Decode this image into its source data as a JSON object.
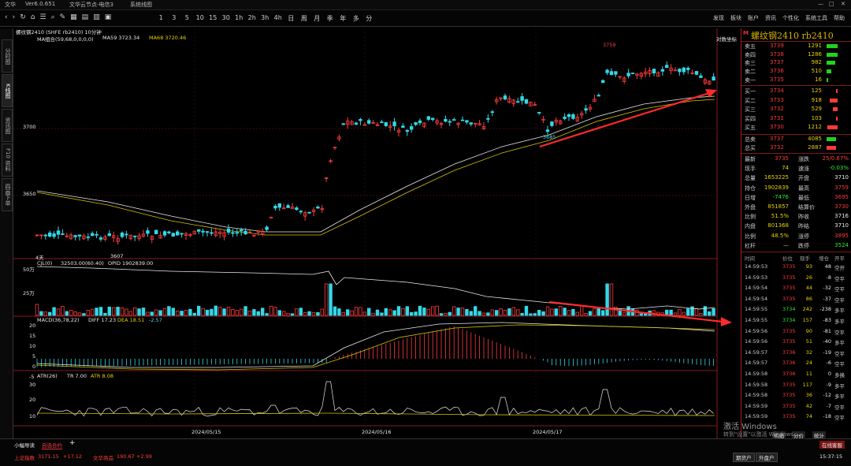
{
  "app": {
    "title_items": [
      "Ver6.0.651",
      "文华云节点-电信3",
      "系统线图"
    ],
    "menu": [
      "发现",
      "板块",
      "账户",
      "资讯",
      "个性化",
      "系统工具",
      "帮助"
    ],
    "periods": [
      "1",
      "3",
      "5",
      "10",
      "15",
      "30",
      "1h",
      "2h",
      "3h",
      "4h",
      "日",
      "周",
      "月",
      "季",
      "年",
      "多",
      "分"
    ]
  },
  "left_tabs": [
    "分时图",
    "K线图",
    "资讯图",
    "F10 资料",
    "四画下单"
  ],
  "chart": {
    "symbol_label": "螺纹钢2410 (SHFE rb2410) 10分钟",
    "ma_header": {
      "name": "MA组合(59,68,0,0,0,0)",
      "ma59": "MA59 3723.34",
      "ma68": "MA68 3720.46"
    },
    "right_label": "对数坐标",
    "price_ticks": [
      "3700",
      "3650"
    ],
    "annotations": {
      "high": "3759",
      "low1": "3607",
      "low2": "3685",
      "period_mark": "4天"
    },
    "vol_header": {
      "name": "CJL(0)",
      "vol": "32503.00(60:40)",
      "opid": "OPID 1902839.00"
    },
    "vol_ticks": [
      "50万",
      "25万"
    ],
    "macd_header": {
      "name": "MACD(36,78,22)",
      "diff": "DIFF 17.23",
      "dea": "DEA 18.51",
      "macd": "-2.57"
    },
    "macd_ticks": [
      "20",
      "15",
      "10",
      "5",
      "0",
      "-5"
    ],
    "atr_header": {
      "name": "ATR(26)",
      "tr": "TR 7.00",
      "atr": "ATR 8.08"
    },
    "atr_ticks": [
      "30",
      "20",
      "10"
    ],
    "dates": [
      "2024/05/15",
      "2024/05/16",
      "2024/05/17"
    ]
  },
  "chart_data": {
    "type": "candlestick",
    "title": "螺纹钢2410 rb2410",
    "interval": "10分钟",
    "x": [
      "2024/05/15",
      "2024/05/16",
      "2024/05/17"
    ],
    "price_range": [
      3600,
      3765
    ],
    "high": 3759,
    "lows": [
      3607,
      3685
    ],
    "close_last": 3735,
    "series": [
      {
        "name": "MA59",
        "value": 3723.34
      },
      {
        "name": "MA68",
        "value": 3720.46
      }
    ]
  },
  "order_book": {
    "title": "螺纹钢2410  rb2410",
    "asks": [
      {
        "label": "卖五",
        "price": "3739",
        "vol": "1291"
      },
      {
        "label": "卖四",
        "price": "3738",
        "vol": "1286"
      },
      {
        "label": "卖三",
        "price": "3737",
        "vol": "982"
      },
      {
        "label": "卖二",
        "price": "3736",
        "vol": "510"
      },
      {
        "label": "卖一",
        "price": "3735",
        "vol": "16"
      }
    ],
    "bids": [
      {
        "label": "买一",
        "price": "3734",
        "vol": "125"
      },
      {
        "label": "买二",
        "price": "3733",
        "vol": "918"
      },
      {
        "label": "买三",
        "price": "3732",
        "vol": "529"
      },
      {
        "label": "买四",
        "price": "3731",
        "vol": "103"
      },
      {
        "label": "买五",
        "price": "3730",
        "vol": "1212"
      }
    ],
    "totals": [
      {
        "label": "总卖",
        "price": "3737",
        "vol": "4085"
      },
      {
        "label": "总买",
        "price": "3732",
        "vol": "2887"
      }
    ]
  },
  "quote": [
    {
      "l": "最新",
      "v": "3735",
      "l2": "涨跌",
      "v2": "25/0.67%"
    },
    {
      "l": "现手",
      "v": "74",
      "l2": "速涨",
      "v2": "-0.03%"
    },
    {
      "l": "总量",
      "v": "1653225",
      "l2": "开盘",
      "v2": "3710"
    },
    {
      "l": "持仓",
      "v": "1902839",
      "l2": "最高",
      "v2": "3759"
    },
    {
      "l": "日增",
      "v": "-7476",
      "l2": "最低",
      "v2": "3695"
    },
    {
      "l": "外盘",
      "v": "851857",
      "l2": "结算价",
      "v2": "3730"
    },
    {
      "l": "比例",
      "v": "51.5%",
      "l2": "昨收",
      "v2": "3716"
    },
    {
      "l": "内盘",
      "v": "801368",
      "l2": "昨结",
      "v2": "3710"
    },
    {
      "l": "比例",
      "v": "48.5%",
      "l2": "涨停",
      "v2": "3895"
    },
    {
      "l": "杠杆",
      "v": "—",
      "l2": "跌停",
      "v2": "3524"
    }
  ],
  "ticks_header": [
    "时间",
    "价位",
    "现手",
    "增仓",
    "开平"
  ],
  "ticks": [
    [
      "14:59:53",
      "3735",
      "93",
      "48",
      "空开"
    ],
    [
      "14:59:53",
      "3735",
      "26",
      "-8",
      "空平"
    ],
    [
      "14:59:54",
      "3735",
      "44",
      "-32",
      "空平"
    ],
    [
      "14:59:54",
      "3735",
      "86",
      "-37",
      "空平"
    ],
    [
      "14:59:55",
      "3734",
      "242",
      "-238",
      "多平"
    ],
    [
      "14:59:55",
      "3734",
      "157",
      "-83",
      "多平"
    ],
    [
      "14:59:56",
      "3735",
      "90",
      "-81",
      "空平"
    ],
    [
      "14:59:56",
      "3735",
      "51",
      "-40",
      "多平"
    ],
    [
      "14:59:57",
      "3736",
      "32",
      "-19",
      "空平"
    ],
    [
      "14:59:57",
      "3736",
      "24",
      "-6",
      "空平"
    ],
    [
      "14:59:58",
      "3736",
      "11",
      "0",
      "多换"
    ],
    [
      "14:59:58",
      "3735",
      "117",
      "-9",
      "多平"
    ],
    [
      "14:59:58",
      "3735",
      "36",
      "-12",
      "多平"
    ],
    [
      "14:59:59",
      "3735",
      "42",
      "-7",
      "空平"
    ],
    [
      "14:59:59",
      "3735",
      "74",
      "-18",
      "空平"
    ]
  ],
  "bottom": {
    "tabs": [
      "小幅导读",
      "自选合约"
    ],
    "indices": [
      "上证指数",
      "3171.15",
      "+17.12",
      "文华商品",
      "190.67",
      "+2.99"
    ],
    "right_buttons": [
      "期货户",
      "外盘户"
    ],
    "time": "15:37:15",
    "side_button": "在线客服",
    "stat_tabs": [
      "明细",
      "分价",
      "统计"
    ]
  },
  "watermark": {
    "line1": "激活 Windows",
    "line2": "转到\"设置\"以激活 Windows。"
  }
}
